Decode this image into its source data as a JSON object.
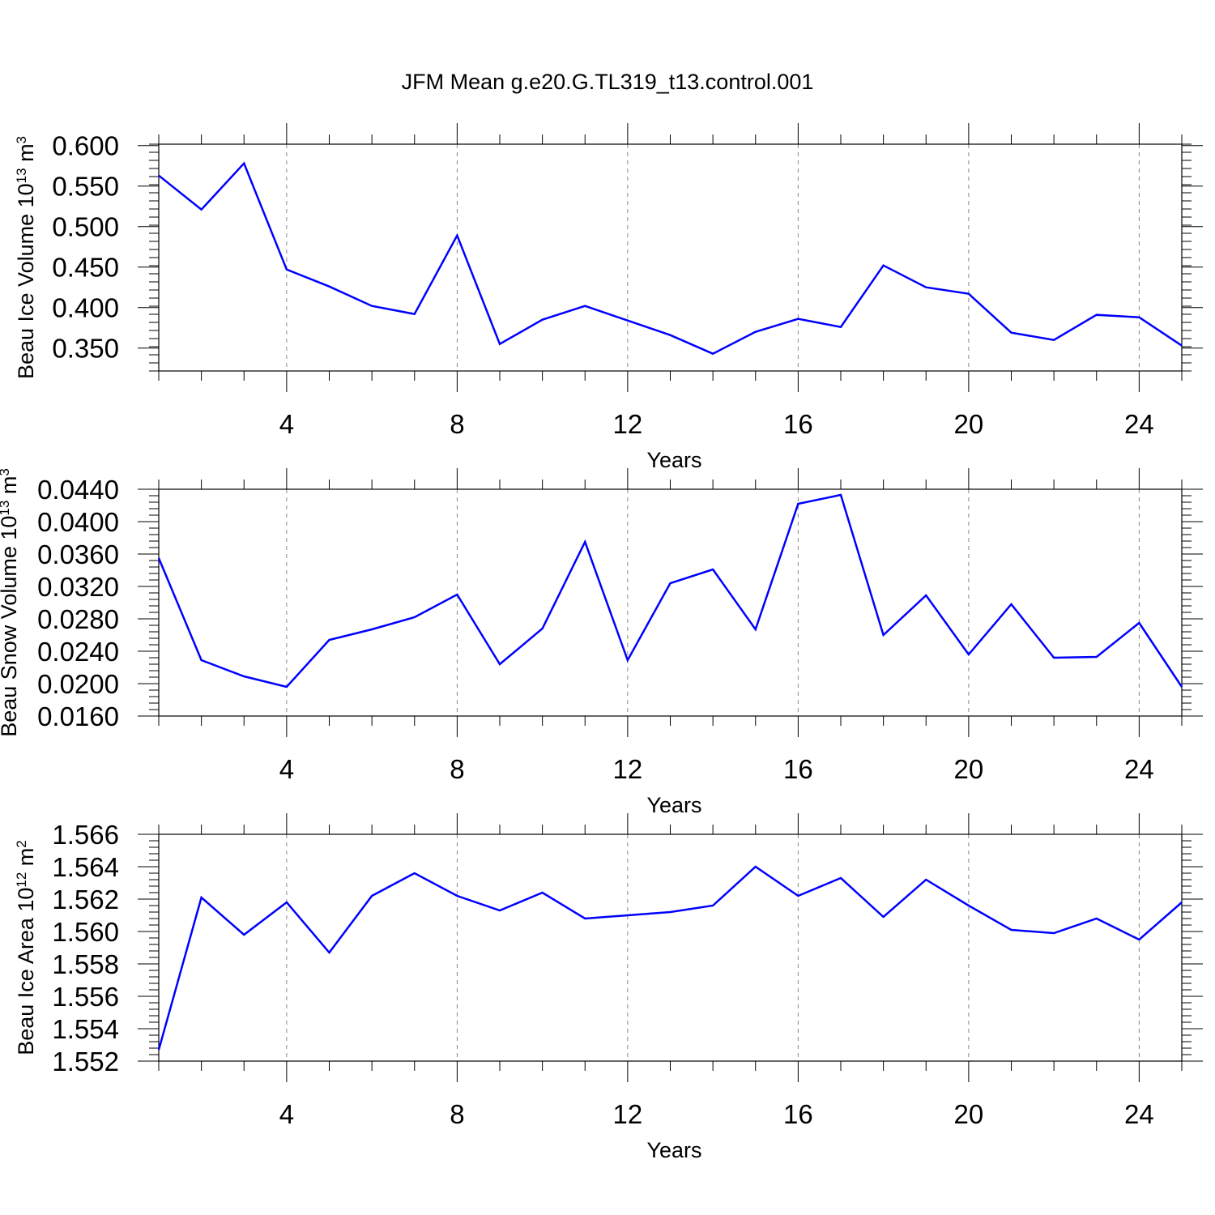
{
  "title": "JFM Mean g.e20.G.TL319_t13.control.001",
  "line_color": "#0000ff",
  "chart_data": [
    {
      "type": "line",
      "title": "",
      "xlabel": "Years",
      "ylabel": "Beau Ice Volume 10",
      "ylabel_exp": "13",
      "ylabel_unit": " m",
      "ylabel_unit_exp": "3",
      "x": [
        1,
        2,
        3,
        4,
        5,
        6,
        7,
        8,
        9,
        10,
        11,
        12,
        13,
        14,
        15,
        16,
        17,
        18,
        19,
        20,
        21,
        22,
        23,
        24,
        25
      ],
      "series": [
        {
          "values": [
            0.563,
            0.521,
            0.578,
            0.447,
            0.426,
            0.402,
            0.392,
            0.489,
            0.355,
            0.385,
            0.402,
            0.384,
            0.366,
            0.343,
            0.37,
            0.386,
            0.376,
            0.452,
            0.425,
            0.417,
            0.369,
            0.36,
            0.391,
            0.388,
            0.353
          ]
        }
      ],
      "xlim": [
        1,
        25
      ],
      "ylim": [
        0.3217,
        0.6017
      ],
      "xticks": [
        4,
        8,
        12,
        16,
        20,
        24
      ],
      "xtick_labels": [
        "4",
        "8",
        "12",
        "16",
        "20",
        "24"
      ],
      "yticks": [
        0.35,
        0.4,
        0.45,
        0.5,
        0.55,
        0.6
      ],
      "ytick_labels": [
        "0.350",
        "0.400",
        "0.450",
        "0.500",
        "0.550",
        "0.600"
      ],
      "yminor_step": 0.01,
      "grid": "vertical dashed at major x ticks"
    },
    {
      "type": "line",
      "title": "",
      "xlabel": "Years",
      "ylabel": "Beau Snow Volume 10",
      "ylabel_exp": "13",
      "ylabel_unit": " m",
      "ylabel_unit_exp": "3",
      "x": [
        1,
        2,
        3,
        4,
        5,
        6,
        7,
        8,
        9,
        10,
        11,
        12,
        13,
        14,
        15,
        16,
        17,
        18,
        19,
        20,
        21,
        22,
        23,
        24,
        25
      ],
      "series": [
        {
          "values": [
            0.0355,
            0.0229,
            0.0209,
            0.0196,
            0.0254,
            0.0267,
            0.0282,
            0.031,
            0.0224,
            0.0268,
            0.0375,
            0.0229,
            0.0324,
            0.0341,
            0.0267,
            0.0422,
            0.0433,
            0.026,
            0.0309,
            0.0236,
            0.0298,
            0.0232,
            0.0233,
            0.0275,
            0.0196
          ]
        }
      ],
      "xlim": [
        1,
        25
      ],
      "ylim": [
        0.016,
        0.044
      ],
      "xticks": [
        4,
        8,
        12,
        16,
        20,
        24
      ],
      "xtick_labels": [
        "4",
        "8",
        "12",
        "16",
        "20",
        "24"
      ],
      "yticks": [
        0.016,
        0.02,
        0.024,
        0.028,
        0.032,
        0.036,
        0.04,
        0.044
      ],
      "ytick_labels": [
        "0.0160",
        "0.0200",
        "0.0240",
        "0.0280",
        "0.0320",
        "0.0360",
        "0.0400",
        "0.0440"
      ],
      "yminor_step": 0.0008,
      "grid": "vertical dashed at major x ticks"
    },
    {
      "type": "line",
      "title": "",
      "xlabel": "Years",
      "ylabel": "Beau Ice Area 10",
      "ylabel_exp": "12",
      "ylabel_unit": " m",
      "ylabel_unit_exp": "2",
      "x": [
        1,
        2,
        3,
        4,
        5,
        6,
        7,
        8,
        9,
        10,
        11,
        12,
        13,
        14,
        15,
        16,
        17,
        18,
        19,
        20,
        21,
        22,
        23,
        24,
        25
      ],
      "series": [
        {
          "values": [
            1.5527,
            1.5621,
            1.5598,
            1.5618,
            1.5587,
            1.5622,
            1.5636,
            1.5622,
            1.5613,
            1.5624,
            1.5608,
            1.561,
            1.5612,
            1.5616,
            1.564,
            1.5622,
            1.5633,
            1.5609,
            1.5632,
            1.5616,
            1.5601,
            1.5599,
            1.5608,
            1.5595,
            1.5618
          ]
        }
      ],
      "xlim": [
        1,
        25
      ],
      "ylim": [
        1.552,
        1.566
      ],
      "xticks": [
        4,
        8,
        12,
        16,
        20,
        24
      ],
      "xtick_labels": [
        "4",
        "8",
        "12",
        "16",
        "20",
        "24"
      ],
      "yticks": [
        1.552,
        1.554,
        1.556,
        1.558,
        1.56,
        1.562,
        1.564,
        1.566
      ],
      "ytick_labels": [
        "1.552",
        "1.554",
        "1.556",
        "1.558",
        "1.560",
        "1.562",
        "1.564",
        "1.566"
      ],
      "yminor_step": 0.0004,
      "grid": "vertical dashed at major x ticks"
    }
  ]
}
